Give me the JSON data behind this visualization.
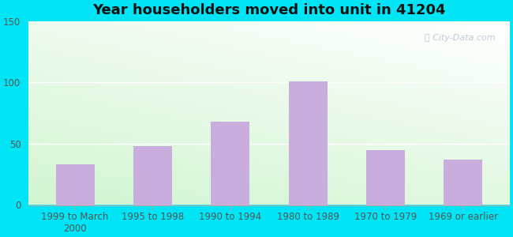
{
  "title": "Year householders moved into unit in 41204",
  "categories": [
    "1999 to March\n2000",
    "1995 to 1998",
    "1990 to 1994",
    "1980 to 1989",
    "1970 to 1979",
    "1969 or earlier"
  ],
  "values": [
    33,
    48,
    68,
    101,
    45,
    37
  ],
  "bar_color": "#c9aedd",
  "background_outer": "#00e5f5",
  "ylim": [
    0,
    150
  ],
  "yticks": [
    0,
    50,
    100,
    150
  ],
  "title_fontsize": 13,
  "tick_fontsize": 8.5,
  "watermark": "City-Data.com"
}
